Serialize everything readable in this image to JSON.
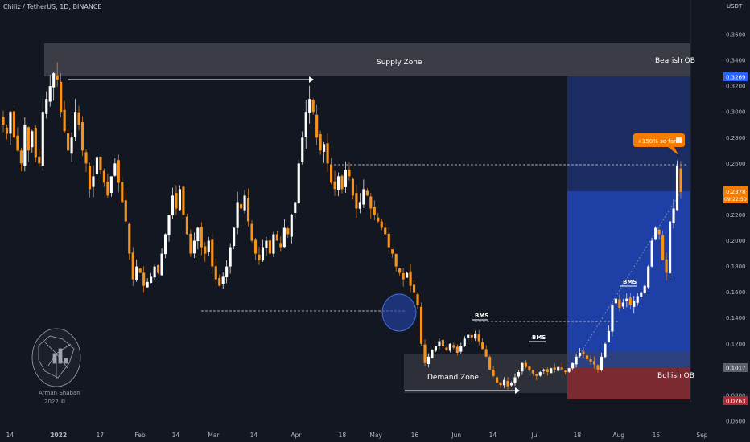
{
  "header": {
    "symbol": "Chiliz / TetherUS, 1D, BINANCE"
  },
  "axis_unit": "USDT",
  "annotations": {
    "supply_zone": "Supply Zone",
    "demand_zone": "Demand Zone",
    "bearish_ob": "Bearish OB",
    "bullish_ob": "Bullish OB",
    "bms_1": "BMS",
    "bms_2": "BMS",
    "bms_3": "BMS",
    "callout": "+150% so far"
  },
  "price_tags": {
    "top_tag": "0.3269",
    "current_price": "0.2378",
    "countdown": "09:22:50",
    "mid_tag": "0.1017",
    "low_tag": "0.0763"
  },
  "author": {
    "name": "Arman Shaban",
    "year": "2022 ©"
  },
  "colors": {
    "background": "#131722",
    "bull_candle": "#ffffff",
    "bear_candle": "#f7931a",
    "supply_zone": "#3c3f48",
    "demand_zone": "#2f323b",
    "target_zone": "#1e3fa6",
    "stop_zone": "#7a2a30",
    "callout": "#f57c00"
  },
  "chart_data": {
    "type": "candlestick",
    "y_ticks": [
      "0.3600",
      "0.3400",
      "0.3200",
      "0.3000",
      "0.2800",
      "0.2600",
      "0.2400",
      "0.2200",
      "0.2000",
      "0.1800",
      "0.1600",
      "0.1400",
      "0.1200",
      "0.1000",
      "0.0800",
      "0.0600"
    ],
    "x_ticks": [
      "14",
      "2022",
      "17",
      "Feb",
      "14",
      "Mar",
      "14",
      "Apr",
      "18",
      "May",
      "16",
      "Jun",
      "14",
      "Jul",
      "18",
      "Aug",
      "15",
      "Sep"
    ],
    "ylim": [
      0.055,
      0.37
    ],
    "grid": false,
    "zones": {
      "supply": [
        0.327,
        0.353
      ],
      "demand": [
        0.079,
        0.112
      ],
      "bearish_ob_target": [
        0.238,
        0.327
      ],
      "bullish_ob_stop": [
        0.0763,
        0.1017
      ]
    },
    "closes": [
      0.29,
      0.283,
      0.3,
      0.28,
      0.27,
      0.26,
      0.29,
      0.27,
      0.285,
      0.265,
      0.26,
      0.3,
      0.31,
      0.32,
      0.33,
      0.325,
      0.3,
      0.285,
      0.27,
      0.28,
      0.3,
      0.29,
      0.27,
      0.26,
      0.24,
      0.25,
      0.265,
      0.255,
      0.245,
      0.235,
      0.25,
      0.26,
      0.245,
      0.23,
      0.215,
      0.19,
      0.17,
      0.18,
      0.175,
      0.165,
      0.168,
      0.172,
      0.18,
      0.175,
      0.19,
      0.205,
      0.22,
      0.235,
      0.225,
      0.24,
      0.22,
      0.205,
      0.19,
      0.2,
      0.21,
      0.195,
      0.19,
      0.2,
      0.18,
      0.17,
      0.165,
      0.172,
      0.18,
      0.195,
      0.21,
      0.23,
      0.225,
      0.235,
      0.215,
      0.2,
      0.19,
      0.185,
      0.195,
      0.2,
      0.19,
      0.205,
      0.2,
      0.195,
      0.21,
      0.205,
      0.22,
      0.23,
      0.26,
      0.28,
      0.3,
      0.31,
      0.3,
      0.28,
      0.27,
      0.275,
      0.26,
      0.245,
      0.24,
      0.25,
      0.24,
      0.255,
      0.25,
      0.235,
      0.225,
      0.23,
      0.24,
      0.235,
      0.225,
      0.22,
      0.215,
      0.21,
      0.205,
      0.195,
      0.19,
      0.18,
      0.175,
      0.17,
      0.175,
      0.165,
      0.16,
      0.15,
      0.12,
      0.105,
      0.11,
      0.115,
      0.118,
      0.122,
      0.118,
      0.115,
      0.12,
      0.117,
      0.113,
      0.118,
      0.124,
      0.127,
      0.125,
      0.128,
      0.122,
      0.116,
      0.11,
      0.1,
      0.095,
      0.09,
      0.088,
      0.092,
      0.087,
      0.09,
      0.094,
      0.098,
      0.105,
      0.102,
      0.1,
      0.097,
      0.095,
      0.098,
      0.1,
      0.098,
      0.101,
      0.1,
      0.102,
      0.1,
      0.098,
      0.101,
      0.105,
      0.11,
      0.113,
      0.112,
      0.108,
      0.106,
      0.104,
      0.1,
      0.11,
      0.12,
      0.13,
      0.15,
      0.155,
      0.148,
      0.152,
      0.155,
      0.15,
      0.153,
      0.157,
      0.16,
      0.165,
      0.18,
      0.2,
      0.21,
      0.205,
      0.185,
      0.175,
      0.215,
      0.225,
      0.258,
      0.2378
    ]
  }
}
